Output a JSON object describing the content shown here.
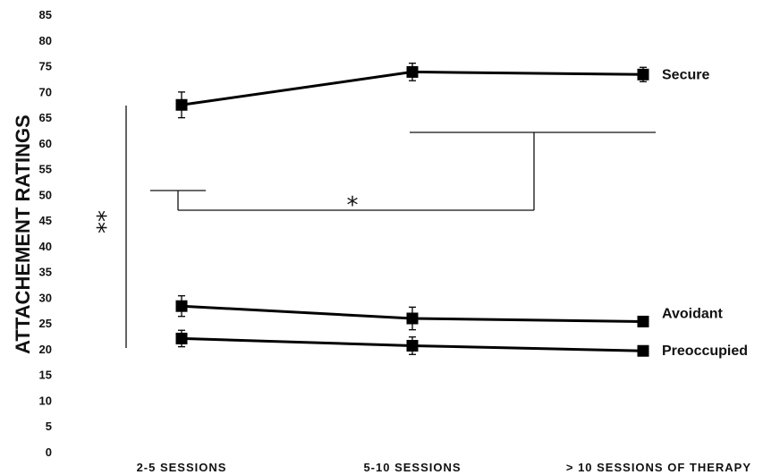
{
  "chart_data": {
    "type": "line",
    "ylabel": "ATTACHEMENT RATINGS",
    "xlabel": "",
    "title": "",
    "ylim": [
      0,
      85
    ],
    "ytick_step": 5,
    "categories": [
      "2-5 SESSIONS",
      "5-10 SESSIONS",
      "> 10 SESSIONS OF THERAPY"
    ],
    "series": [
      {
        "name": "Secure",
        "values": [
          67.4,
          73.8,
          73.3
        ],
        "errors": [
          2.5,
          1.7,
          1.4
        ]
      },
      {
        "name": "Avoidant",
        "values": [
          28.3,
          25.9,
          25.3
        ],
        "errors": [
          2.0,
          2.2,
          1.0
        ]
      },
      {
        "name": "Preoccupied",
        "values": [
          22.0,
          20.6,
          19.6
        ],
        "errors": [
          1.6,
          1.7,
          0.6
        ]
      }
    ],
    "annotations": [
      {
        "text": "**",
        "meaning": "significance bracket spanning Secure vs. Avoidant/Preoccupied"
      },
      {
        "text": "*",
        "meaning": "significance bracket between 2-5 sessions and later sessions"
      }
    ],
    "grid": false,
    "legend": "inline labels at right end of each line"
  }
}
